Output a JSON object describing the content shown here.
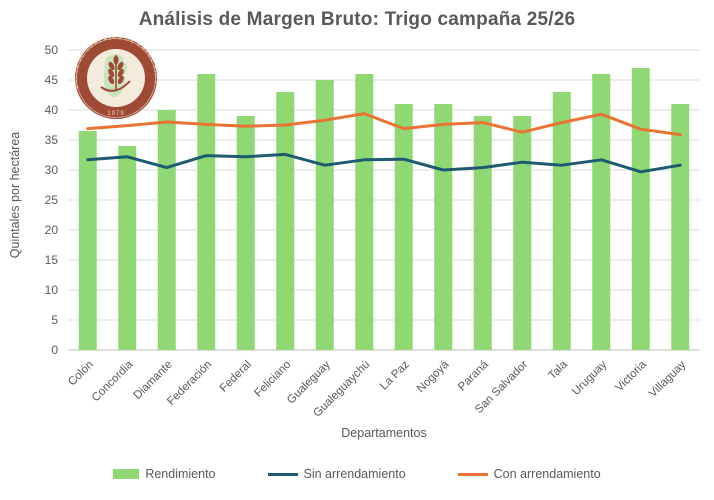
{
  "chart_data": {
    "type": "bar",
    "title": "Análisis de Margen Bruto: Trigo campaña 25/26",
    "xlabel": "Departamentos",
    "ylabel": "Quintales por hectárea",
    "ylim": [
      0,
      50
    ],
    "ytick_step": 5,
    "grid": true,
    "legend_position": "bottom",
    "categories": [
      "Colón",
      "Concordia",
      "Diamante",
      "Federación",
      "Federal",
      "Feliciano",
      "Gualeguay",
      "Gualeguaychú",
      "La Paz",
      "Nogoyá",
      "Paraná",
      "San Salvador",
      "Tala",
      "Uruguay",
      "Victoria",
      "Villaguay"
    ],
    "series": [
      {
        "name": "Rendimiento",
        "kind": "bar",
        "color": "#90D873",
        "values": [
          36.5,
          34,
          40,
          46,
          39,
          43,
          45,
          46,
          41,
          41,
          39,
          39,
          43,
          46,
          47,
          41
        ]
      },
      {
        "name": "Sin arrendamiento",
        "kind": "line",
        "color": "#1E5A70",
        "values": [
          31.7,
          32.2,
          30.4,
          32.4,
          32.2,
          32.6,
          30.8,
          31.7,
          31.8,
          30.0,
          30.4,
          31.3,
          30.8,
          31.7,
          29.7,
          30.8
        ]
      },
      {
        "name": "Con arrendamiento",
        "kind": "line",
        "color": "#E87332",
        "values": [
          36.9,
          37.4,
          38.0,
          37.6,
          37.3,
          37.5,
          38.3,
          39.4,
          36.9,
          37.6,
          37.9,
          36.3,
          37.9,
          39.3,
          36.8,
          35.9
        ]
      }
    ],
    "colors": {
      "grid": "#D9D9D9",
      "axis": "#BFBFBF",
      "text": "#595959"
    }
  },
  "logo": {
    "arc_text": "BOLSA DE CEREALES DE ENTRE RÍOS",
    "year": "1979"
  }
}
